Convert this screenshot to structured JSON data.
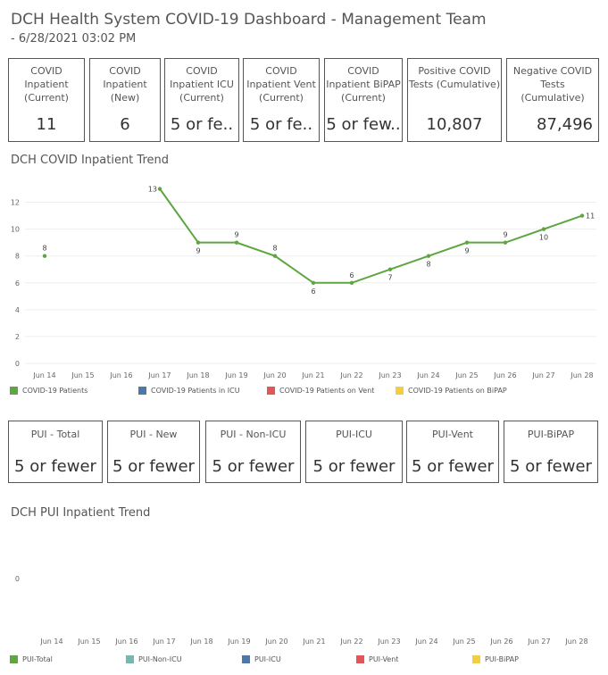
{
  "header": {
    "title": "DCH Health System COVID-19 Dashboard - Management Team",
    "subtitle": "- 6/28/2021 03:02 PM"
  },
  "kpis": [
    {
      "label": "COVID Inpatient (Current)",
      "value": "11"
    },
    {
      "label": "COVID Inpatient (New)",
      "value": "6"
    },
    {
      "label": "COVID Inpatient ICU (Current)",
      "value": "5 or fe.."
    },
    {
      "label": "COVID Inpatient Vent (Current)",
      "value": "5 or fe.."
    },
    {
      "label": "COVID Inpatient BiPAP (Current)",
      "value": "5 or few.."
    },
    {
      "label": "Positive COVID Tests (Cumulative)",
      "value": "10,807"
    },
    {
      "label": "Negative COVID Tests (Cumulative)",
      "value": "87,496"
    }
  ],
  "pui_cards": [
    {
      "label": "PUI - Total",
      "value": "5 or fewer"
    },
    {
      "label": "PUI - New",
      "value": "5 or fewer"
    },
    {
      "label": "PUI - Non-ICU",
      "value": "5 or fewer"
    },
    {
      "label": "PUI-ICU",
      "value": "5 or fewer"
    },
    {
      "label": "PUI-Vent",
      "value": "5 or fewer"
    },
    {
      "label": "PUI-BiPAP",
      "value": "5 or fewer"
    }
  ],
  "colors": {
    "green": "#5ea642",
    "blue": "#4e79a7",
    "red": "#e15759",
    "yellow": "#f1ce42",
    "teal": "#76b7b2"
  },
  "chart_data": [
    {
      "type": "line",
      "title": "DCH COVID Inpatient Trend",
      "categories": [
        "Jun 14",
        "Jun 15",
        "Jun 16",
        "Jun 17",
        "Jun 18",
        "Jun 19",
        "Jun 20",
        "Jun 21",
        "Jun 22",
        "Jun 23",
        "Jun 24",
        "Jun 25",
        "Jun 26",
        "Jun 27",
        "Jun 28"
      ],
      "series": [
        {
          "name": "COVID-19 Patients",
          "color": "#5ea642",
          "values": [
            8,
            null,
            null,
            13,
            9,
            9,
            8,
            6,
            6,
            7,
            8,
            9,
            9,
            10,
            11
          ]
        }
      ],
      "legend": [
        "COVID-19 Patients",
        "COVID-19 Patients in ICU",
        "COVID-19 Patients on Vent",
        "COVID-19 Patients on BiPAP"
      ],
      "legend_colors": [
        "#5ea642",
        "#4e79a7",
        "#e15759",
        "#f1ce42"
      ],
      "y_ticks": [
        0,
        2,
        4,
        6,
        8,
        10,
        12
      ],
      "ylim": [
        0,
        13.5
      ],
      "grid": true,
      "legend_position": "bottom"
    },
    {
      "type": "line",
      "title": "DCH PUI Inpatient Trend",
      "categories": [
        "Jun 14",
        "Jun 15",
        "Jun 16",
        "Jun 17",
        "Jun 18",
        "Jun 19",
        "Jun 20",
        "Jun 21",
        "Jun 22",
        "Jun 23",
        "Jun 24",
        "Jun 25",
        "Jun 26",
        "Jun 27",
        "Jun 28"
      ],
      "series": [],
      "legend": [
        "PUI-Total",
        "PUI-Non-ICU",
        "PUI-ICU",
        "PUI-Vent",
        "PUI-BiPAP"
      ],
      "legend_colors": [
        "#5ea642",
        "#76b7b2",
        "#4e79a7",
        "#e15759",
        "#f1ce42"
      ],
      "y_ticks": [
        0
      ],
      "grid": false,
      "legend_position": "bottom"
    }
  ]
}
